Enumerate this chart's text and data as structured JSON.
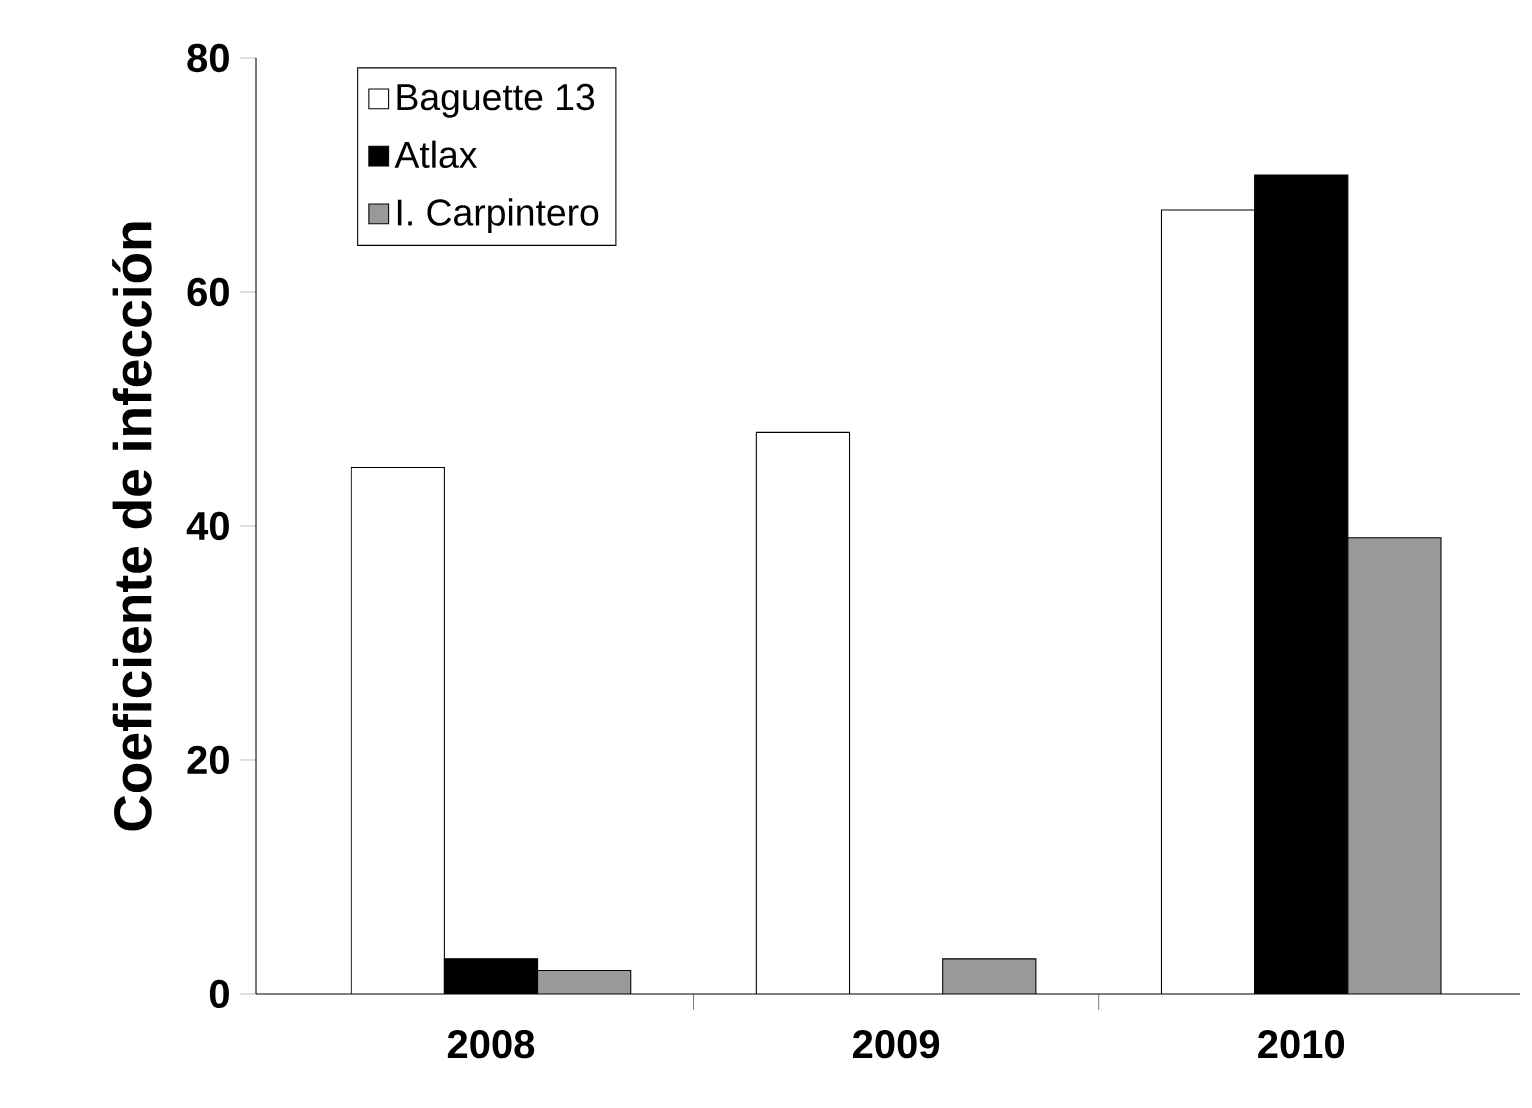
{
  "chart_data": {
    "type": "bar",
    "ylabel": "Coeficiente de infección",
    "categories": [
      "2008",
      "2009",
      "2010"
    ],
    "series": [
      {
        "name": "Baguette 13",
        "color": "#ffffff",
        "values": [
          45,
          48,
          67
        ]
      },
      {
        "name": "Atlax",
        "color": "#000000",
        "values": [
          3,
          null,
          70
        ]
      },
      {
        "name": "I. Carpintero",
        "color": "#999999",
        "values": [
          2,
          3,
          39
        ]
      }
    ],
    "ylim": [
      0,
      80
    ],
    "yticks": [
      0,
      20,
      40,
      60,
      80
    ],
    "legend": "top left",
    "grid": false
  }
}
